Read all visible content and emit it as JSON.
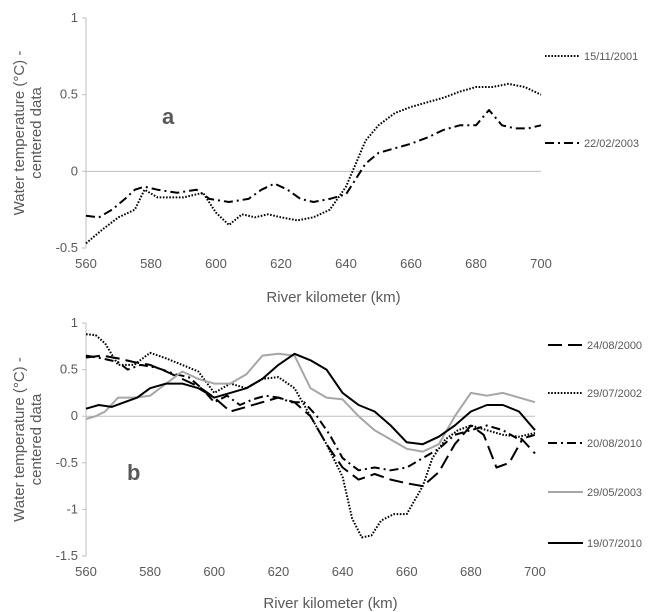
{
  "chart_data": [
    {
      "type": "line",
      "panel_label": "a",
      "xlabel": "River kilometer (km)",
      "ylabel": "Water temperature (°C) - centered data",
      "xlim": [
        560,
        700
      ],
      "ylim": [
        -0.5,
        1
      ],
      "xticks": [
        "560",
        "580",
        "600",
        "620",
        "640",
        "660",
        "680",
        "700"
      ],
      "yticks": [
        "-0.5",
        "0",
        "0.5",
        "1"
      ],
      "series": [
        {
          "name": "15/11/2001",
          "style": "dotted",
          "color": "#000000",
          "x": [
            560,
            565,
            570,
            575,
            578,
            582,
            590,
            596,
            600,
            604,
            608,
            612,
            616,
            620,
            625,
            630,
            635,
            640,
            643,
            646,
            650,
            655,
            660,
            665,
            670,
            675,
            680,
            685,
            690,
            695,
            700
          ],
          "y": [
            -0.47,
            -0.38,
            -0.3,
            -0.25,
            -0.12,
            -0.17,
            -0.17,
            -0.14,
            -0.27,
            -0.35,
            -0.28,
            -0.3,
            -0.28,
            -0.3,
            -0.32,
            -0.3,
            -0.25,
            -0.1,
            0.05,
            0.2,
            0.3,
            0.38,
            0.42,
            0.45,
            0.48,
            0.52,
            0.55,
            0.55,
            0.57,
            0.55,
            0.5
          ]
        },
        {
          "name": "22/02/2003",
          "style": "dashdot",
          "color": "#000000",
          "x": [
            560,
            564,
            568,
            572,
            575,
            578,
            582,
            588,
            594,
            598,
            604,
            610,
            614,
            618,
            622,
            626,
            630,
            635,
            640,
            643,
            646,
            650,
            655,
            660,
            665,
            670,
            675,
            680,
            684,
            688,
            692,
            696,
            700
          ],
          "y": [
            -0.29,
            -0.3,
            -0.25,
            -0.18,
            -0.12,
            -0.1,
            -0.12,
            -0.14,
            -0.12,
            -0.18,
            -0.2,
            -0.18,
            -0.12,
            -0.08,
            -0.12,
            -0.18,
            -0.2,
            -0.18,
            -0.15,
            -0.05,
            0.05,
            0.12,
            0.15,
            0.18,
            0.22,
            0.27,
            0.3,
            0.3,
            0.4,
            0.3,
            0.28,
            0.28,
            0.3
          ]
        }
      ]
    },
    {
      "type": "line",
      "panel_label": "b",
      "xlabel": "River kilometer (km)",
      "ylabel": "Water temperature (°C) - centered data",
      "xlim": [
        560,
        700
      ],
      "ylim": [
        -1.5,
        1
      ],
      "xticks": [
        "560",
        "580",
        "600",
        "620",
        "640",
        "660",
        "680",
        "700"
      ],
      "yticks": [
        "-1.5",
        "-1",
        "-0.5",
        "0",
        "0.5",
        "1"
      ],
      "series": [
        {
          "name": "24/08/2000",
          "style": "longdash",
          "color": "#000000",
          "x": [
            560,
            565,
            570,
            575,
            580,
            585,
            590,
            595,
            600,
            605,
            610,
            615,
            620,
            625,
            630,
            635,
            640,
            645,
            650,
            655,
            660,
            665,
            670,
            675,
            680,
            684,
            688,
            692,
            696,
            700
          ],
          "y": [
            0.63,
            0.65,
            0.62,
            0.58,
            0.55,
            0.48,
            0.4,
            0.32,
            0.2,
            0.05,
            0.1,
            0.15,
            0.2,
            0.15,
            0.0,
            -0.3,
            -0.55,
            -0.68,
            -0.62,
            -0.68,
            -0.72,
            -0.75,
            -0.6,
            -0.3,
            -0.1,
            -0.2,
            -0.55,
            -0.5,
            -0.25,
            -0.4
          ]
        },
        {
          "name": "29/07/2002",
          "style": "dotted",
          "color": "#000000",
          "x": [
            560,
            563,
            566,
            570,
            575,
            580,
            585,
            590,
            595,
            600,
            605,
            610,
            615,
            620,
            625,
            630,
            635,
            640,
            643,
            646,
            649,
            652,
            656,
            660,
            665,
            668,
            672,
            676,
            680,
            685,
            690,
            695,
            700
          ],
          "y": [
            0.88,
            0.87,
            0.78,
            0.55,
            0.55,
            0.68,
            0.62,
            0.55,
            0.48,
            0.25,
            0.35,
            0.3,
            0.4,
            0.42,
            0.3,
            0.0,
            -0.3,
            -0.65,
            -1.1,
            -1.3,
            -1.28,
            -1.12,
            -1.05,
            -1.05,
            -0.75,
            -0.45,
            -0.25,
            -0.15,
            -0.1,
            -0.15,
            -0.2,
            -0.22,
            -0.18
          ]
        },
        {
          "name": "20/08/2010",
          "style": "dashdot",
          "color": "#000000",
          "x": [
            560,
            565,
            570,
            573,
            577,
            582,
            588,
            592,
            596,
            600,
            604,
            608,
            612,
            616,
            620,
            624,
            628,
            632,
            636,
            640,
            645,
            650,
            655,
            660,
            665,
            670,
            675,
            680,
            685,
            690,
            695,
            700
          ],
          "y": [
            0.65,
            0.62,
            0.58,
            0.5,
            0.55,
            0.52,
            0.45,
            0.42,
            0.3,
            0.15,
            0.22,
            0.12,
            0.18,
            0.22,
            0.2,
            0.15,
            0.15,
            0.0,
            -0.2,
            -0.45,
            -0.58,
            -0.55,
            -0.58,
            -0.55,
            -0.45,
            -0.35,
            -0.2,
            -0.15,
            -0.1,
            -0.15,
            -0.25,
            -0.2
          ]
        },
        {
          "name": "29/05/2003",
          "style": "solid",
          "color": "#a6a6a6",
          "x": [
            560,
            563,
            566,
            570,
            575,
            580,
            585,
            590,
            595,
            600,
            605,
            610,
            615,
            620,
            625,
            630,
            635,
            640,
            645,
            650,
            655,
            660,
            665,
            670,
            675,
            680,
            685,
            690,
            695,
            700
          ],
          "y": [
            -0.03,
            0.0,
            0.05,
            0.2,
            0.2,
            0.22,
            0.35,
            0.48,
            0.4,
            0.35,
            0.35,
            0.45,
            0.65,
            0.67,
            0.65,
            0.3,
            0.2,
            0.18,
            0.0,
            -0.15,
            -0.25,
            -0.35,
            -0.38,
            -0.3,
            0.0,
            0.25,
            0.22,
            0.25,
            0.2,
            0.15
          ]
        },
        {
          "name": "19/07/2010",
          "style": "solid",
          "color": "#000000",
          "x": [
            560,
            564,
            568,
            572,
            576,
            580,
            585,
            590,
            595,
            600,
            605,
            610,
            615,
            620,
            625,
            630,
            635,
            640,
            645,
            650,
            655,
            660,
            665,
            670,
            675,
            680,
            685,
            690,
            695,
            700
          ],
          "y": [
            0.08,
            0.12,
            0.1,
            0.15,
            0.2,
            0.3,
            0.35,
            0.35,
            0.3,
            0.2,
            0.25,
            0.3,
            0.4,
            0.55,
            0.67,
            0.6,
            0.5,
            0.25,
            0.12,
            0.05,
            -0.1,
            -0.28,
            -0.3,
            -0.22,
            -0.1,
            0.05,
            0.12,
            0.12,
            0.05,
            -0.15
          ]
        }
      ]
    }
  ]
}
